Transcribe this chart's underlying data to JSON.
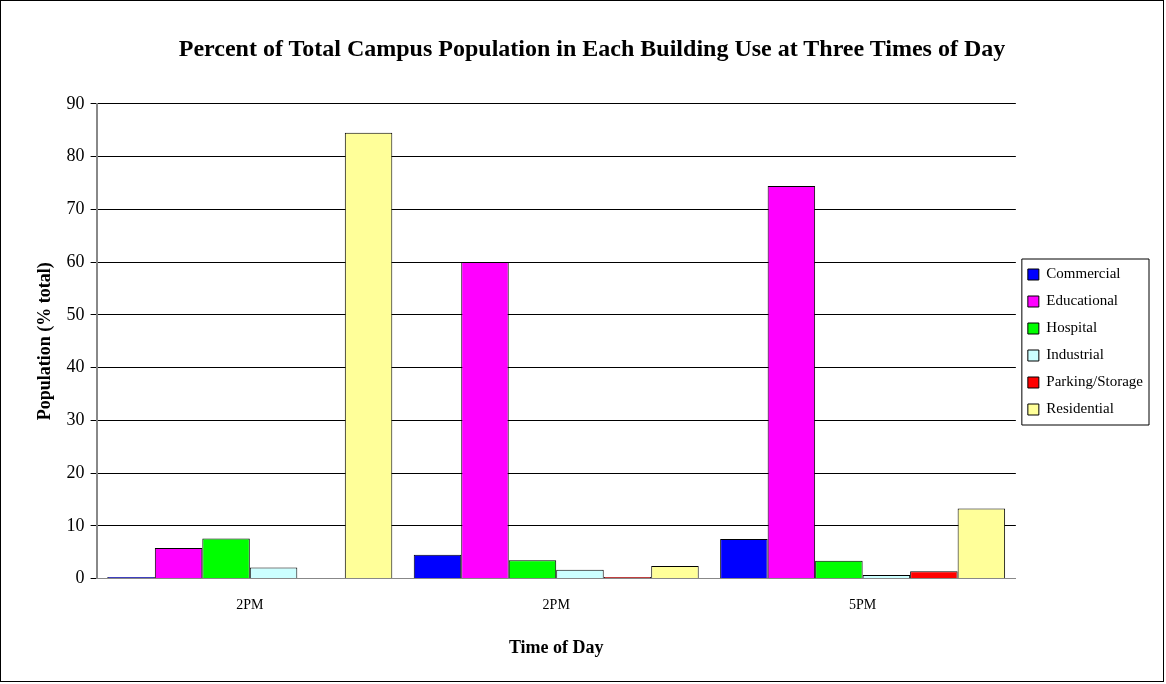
{
  "chart_data": {
    "type": "bar",
    "title": "Percent of Total Campus Population in Each Building Use at Three Times of Day",
    "xlabel": "Time of Day",
    "ylabel": "Population (% total)",
    "categories": [
      "2PM",
      "2PM",
      "5PM"
    ],
    "series": [
      {
        "name": "Commercial",
        "color": "#0000ff",
        "values": [
          0.3,
          4.5,
          7.5
        ]
      },
      {
        "name": "Educational",
        "color": "#ff00ff",
        "values": [
          5.8,
          60,
          74.4
        ]
      },
      {
        "name": "Hospital",
        "color": "#00ff00",
        "values": [
          7.6,
          3.5,
          3.4
        ]
      },
      {
        "name": "Industrial",
        "color": "#ccffff",
        "values": [
          2.1,
          1.7,
          0.7
        ]
      },
      {
        "name": "Parking/Storage",
        "color": "#ff0000",
        "values": [
          0,
          0.3,
          1.4
        ]
      },
      {
        "name": "Residential",
        "color": "#ffff99",
        "values": [
          84.5,
          2.4,
          13.3
        ]
      }
    ],
    "ylim": [
      0,
      90
    ],
    "yticks": [
      0,
      10,
      20,
      30,
      40,
      50,
      60,
      70,
      80,
      90
    ],
    "grid": "y",
    "legend": "right"
  }
}
